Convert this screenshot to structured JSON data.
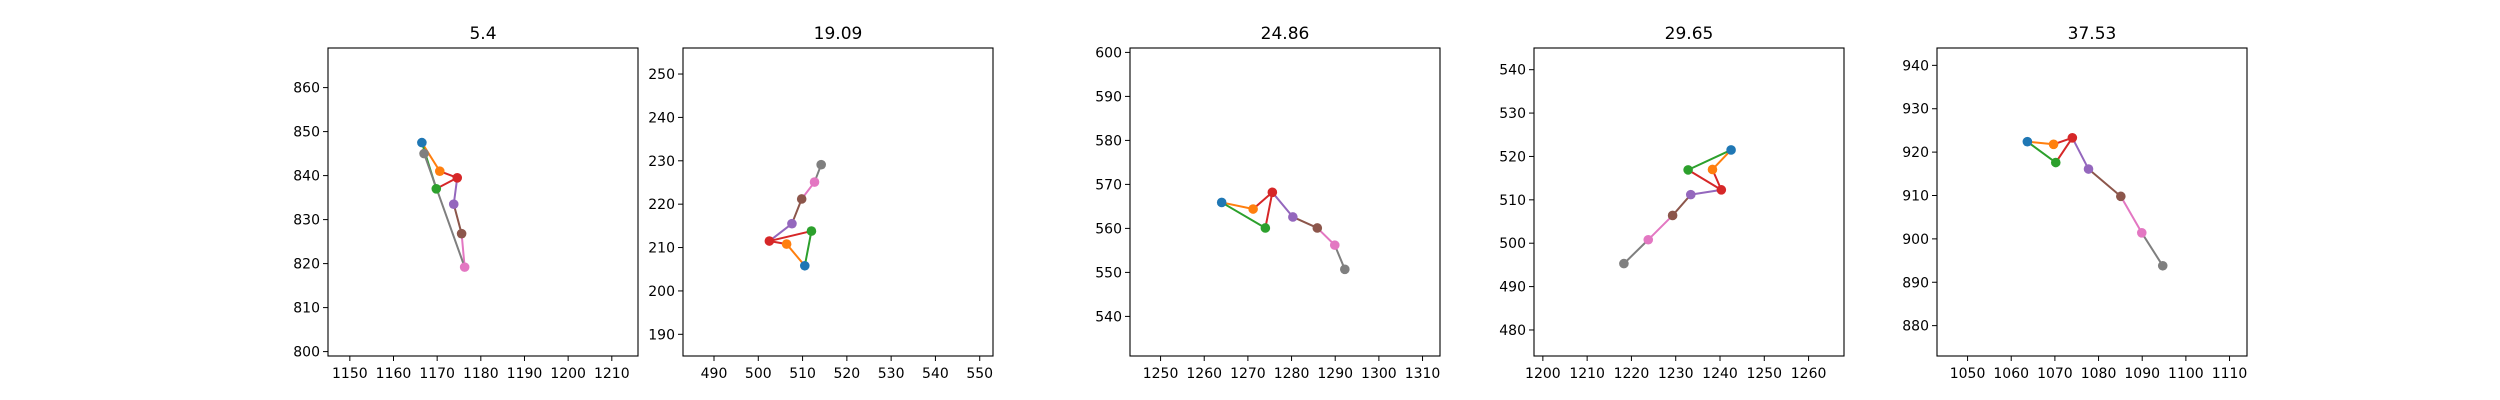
{
  "chart_data": [
    {
      "type": "line",
      "title": "5.4",
      "xlabel": "",
      "ylabel": "",
      "xlim": [
        1145,
        1216
      ],
      "ylim": [
        799,
        869
      ],
      "xticks": [
        1150,
        1160,
        1170,
        1180,
        1190,
        1200,
        1210
      ],
      "yticks": [
        800,
        810,
        820,
        830,
        840,
        850,
        860
      ],
      "grid": false,
      "points": [
        {
          "x": 1166.5,
          "y": 847.5,
          "color": "#1f77b4"
        },
        {
          "x": 1170.6,
          "y": 841.0,
          "color": "#ff7f0e"
        },
        {
          "x": 1169.8,
          "y": 837.0,
          "color": "#2ca02c"
        },
        {
          "x": 1174.6,
          "y": 839.5,
          "color": "#d62728"
        },
        {
          "x": 1173.8,
          "y": 833.5,
          "color": "#9467bd"
        },
        {
          "x": 1175.6,
          "y": 826.8,
          "color": "#8c564b"
        },
        {
          "x": 1176.3,
          "y": 819.2,
          "color": "#e377c2"
        },
        {
          "x": 1167.0,
          "y": 845.0,
          "color": "#7f7f7f"
        }
      ],
      "segments": [
        {
          "from": 0,
          "to": 1,
          "color": "#ff7f0e"
        },
        {
          "from": 0,
          "to": 2,
          "color": "#2ca02c"
        },
        {
          "from": 1,
          "to": 3,
          "color": "#d62728"
        },
        {
          "from": 2,
          "to": 3,
          "color": "#d62728"
        },
        {
          "from": 3,
          "to": 4,
          "color": "#9467bd"
        },
        {
          "from": 4,
          "to": 5,
          "color": "#8c564b"
        },
        {
          "from": 5,
          "to": 6,
          "color": "#e377c2"
        },
        {
          "from": 6,
          "to": 7,
          "color": "#7f7f7f"
        }
      ]
    },
    {
      "type": "line",
      "title": "19.09",
      "xlabel": "",
      "ylabel": "",
      "xlim": [
        483,
        553
      ],
      "ylim": [
        185,
        256
      ],
      "xticks": [
        490,
        500,
        510,
        520,
        530,
        540,
        550
      ],
      "yticks": [
        190,
        200,
        210,
        220,
        230,
        240,
        250
      ],
      "grid": false,
      "points": [
        {
          "x": 510.5,
          "y": 205.8,
          "color": "#1f77b4"
        },
        {
          "x": 506.4,
          "y": 210.8,
          "color": "#ff7f0e"
        },
        {
          "x": 512.0,
          "y": 213.8,
          "color": "#2ca02c"
        },
        {
          "x": 502.5,
          "y": 211.5,
          "color": "#d62728"
        },
        {
          "x": 507.6,
          "y": 215.5,
          "color": "#9467bd"
        },
        {
          "x": 509.8,
          "y": 221.2,
          "color": "#8c564b"
        },
        {
          "x": 512.7,
          "y": 225.1,
          "color": "#e377c2"
        },
        {
          "x": 514.2,
          "y": 229.1,
          "color": "#7f7f7f"
        }
      ],
      "segments": [
        {
          "from": 0,
          "to": 1,
          "color": "#ff7f0e"
        },
        {
          "from": 0,
          "to": 2,
          "color": "#2ca02c"
        },
        {
          "from": 1,
          "to": 3,
          "color": "#d62728"
        },
        {
          "from": 2,
          "to": 3,
          "color": "#d62728"
        },
        {
          "from": 3,
          "to": 4,
          "color": "#9467bd"
        },
        {
          "from": 4,
          "to": 5,
          "color": "#8c564b"
        },
        {
          "from": 5,
          "to": 6,
          "color": "#e377c2"
        },
        {
          "from": 6,
          "to": 7,
          "color": "#7f7f7f"
        }
      ]
    },
    {
      "type": "line",
      "title": "24.86",
      "xlabel": "",
      "ylabel": "",
      "xlim": [
        1243,
        1314
      ],
      "ylim": [
        531,
        601
      ],
      "xticks": [
        1250,
        1260,
        1270,
        1280,
        1290,
        1300,
        1310
      ],
      "yticks": [
        540,
        550,
        560,
        570,
        580,
        590,
        600
      ],
      "grid": false,
      "points": [
        {
          "x": 1264.0,
          "y": 565.9,
          "color": "#1f77b4"
        },
        {
          "x": 1271.2,
          "y": 564.4,
          "color": "#ff7f0e"
        },
        {
          "x": 1274.0,
          "y": 560.1,
          "color": "#2ca02c"
        },
        {
          "x": 1275.6,
          "y": 568.2,
          "color": "#d62728"
        },
        {
          "x": 1280.3,
          "y": 562.6,
          "color": "#9467bd"
        },
        {
          "x": 1285.9,
          "y": 560.1,
          "color": "#8c564b"
        },
        {
          "x": 1289.9,
          "y": 556.2,
          "color": "#e377c2"
        },
        {
          "x": 1292.2,
          "y": 550.7,
          "color": "#7f7f7f"
        }
      ],
      "segments": [
        {
          "from": 0,
          "to": 1,
          "color": "#ff7f0e"
        },
        {
          "from": 0,
          "to": 2,
          "color": "#2ca02c"
        },
        {
          "from": 1,
          "to": 3,
          "color": "#d62728"
        },
        {
          "from": 2,
          "to": 3,
          "color": "#d62728"
        },
        {
          "from": 3,
          "to": 4,
          "color": "#9467bd"
        },
        {
          "from": 4,
          "to": 5,
          "color": "#8c564b"
        },
        {
          "from": 5,
          "to": 6,
          "color": "#e377c2"
        },
        {
          "from": 6,
          "to": 7,
          "color": "#7f7f7f"
        }
      ]
    },
    {
      "type": "line",
      "title": "29.65",
      "xlabel": "",
      "ylabel": "",
      "xlim": [
        1198,
        1268
      ],
      "ylim": [
        474,
        545
      ],
      "xticks": [
        1200,
        1210,
        1220,
        1230,
        1240,
        1250,
        1260
      ],
      "yticks": [
        480,
        490,
        500,
        510,
        520,
        530,
        540
      ],
      "grid": false,
      "points": [
        {
          "x": 1242.5,
          "y": 521.5,
          "color": "#1f77b4"
        },
        {
          "x": 1238.3,
          "y": 517.0,
          "color": "#ff7f0e"
        },
        {
          "x": 1232.8,
          "y": 516.9,
          "color": "#2ca02c"
        },
        {
          "x": 1240.3,
          "y": 512.3,
          "color": "#d62728"
        },
        {
          "x": 1233.4,
          "y": 511.2,
          "color": "#9467bd"
        },
        {
          "x": 1229.3,
          "y": 506.4,
          "color": "#8c564b"
        },
        {
          "x": 1223.8,
          "y": 500.8,
          "color": "#e377c2"
        },
        {
          "x": 1218.3,
          "y": 495.3,
          "color": "#7f7f7f"
        }
      ],
      "segments": [
        {
          "from": 0,
          "to": 1,
          "color": "#ff7f0e"
        },
        {
          "from": 0,
          "to": 2,
          "color": "#2ca02c"
        },
        {
          "from": 1,
          "to": 3,
          "color": "#d62728"
        },
        {
          "from": 2,
          "to": 3,
          "color": "#d62728"
        },
        {
          "from": 3,
          "to": 4,
          "color": "#9467bd"
        },
        {
          "from": 4,
          "to": 5,
          "color": "#8c564b"
        },
        {
          "from": 5,
          "to": 6,
          "color": "#e377c2"
        },
        {
          "from": 6,
          "to": 7,
          "color": "#7f7f7f"
        }
      ]
    },
    {
      "type": "line",
      "title": "37.53",
      "xlabel": "",
      "ylabel": "",
      "xlim": [
        1043,
        1114
      ],
      "ylim": [
        873,
        944
      ],
      "xticks": [
        1050,
        1060,
        1070,
        1080,
        1090,
        1100,
        1110
      ],
      "yticks": [
        880,
        890,
        900,
        910,
        920,
        930,
        940
      ],
      "grid": false,
      "points": [
        {
          "x": 1063.7,
          "y": 922.4,
          "color": "#1f77b4"
        },
        {
          "x": 1069.7,
          "y": 921.8,
          "color": "#ff7f0e"
        },
        {
          "x": 1070.2,
          "y": 917.6,
          "color": "#2ca02c"
        },
        {
          "x": 1074.0,
          "y": 923.3,
          "color": "#d62728"
        },
        {
          "x": 1077.7,
          "y": 916.1,
          "color": "#9467bd"
        },
        {
          "x": 1085.1,
          "y": 909.8,
          "color": "#8c564b"
        },
        {
          "x": 1089.9,
          "y": 901.4,
          "color": "#e377c2"
        },
        {
          "x": 1094.7,
          "y": 893.8,
          "color": "#7f7f7f"
        }
      ],
      "segments": [
        {
          "from": 0,
          "to": 1,
          "color": "#ff7f0e"
        },
        {
          "from": 0,
          "to": 2,
          "color": "#2ca02c"
        },
        {
          "from": 1,
          "to": 3,
          "color": "#d62728"
        },
        {
          "from": 2,
          "to": 3,
          "color": "#d62728"
        },
        {
          "from": 3,
          "to": 4,
          "color": "#9467bd"
        },
        {
          "from": 4,
          "to": 5,
          "color": "#8c564b"
        },
        {
          "from": 5,
          "to": 6,
          "color": "#e377c2"
        },
        {
          "from": 6,
          "to": 7,
          "color": "#7f7f7f"
        }
      ]
    }
  ]
}
